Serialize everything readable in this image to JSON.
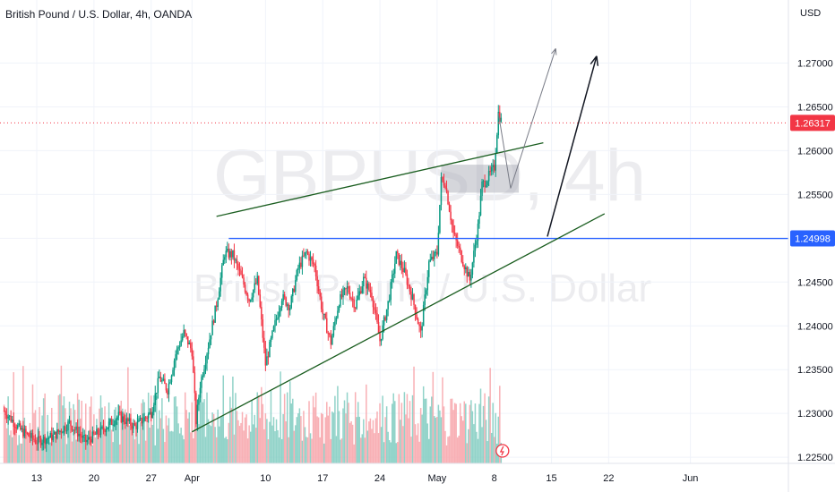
{
  "header": {
    "symbol_description": "British Pound / U.S. Dollar, 4h, OANDA",
    "currency": "USD"
  },
  "watermark": {
    "symbol": "GBPUSD, 4h",
    "description": "British Pound / U.S. Dollar"
  },
  "price_badges": {
    "last_price": "1.26317",
    "level": "1.24998",
    "last_color": "#f23645",
    "level_color": "#2962ff"
  },
  "chart_data": {
    "type": "candlestick",
    "y_axis": {
      "ylim": [
        1.2243,
        1.2772
      ],
      "ticks": [
        "1.27000",
        "1.26500",
        "1.26000",
        "1.25500",
        "1.25000",
        "1.24500",
        "1.24000",
        "1.23500",
        "1.23000",
        "1.22500"
      ],
      "tick_values": [
        1.27,
        1.265,
        1.26,
        1.255,
        1.25,
        1.245,
        1.24,
        1.235,
        1.23,
        1.225
      ]
    },
    "x_axis": {
      "tick_labels": [
        "13",
        "20",
        "27",
        "Apr",
        "10",
        "17",
        "24",
        "May",
        "8",
        "15",
        "22",
        "Jun"
      ],
      "tick_days": [
        -19,
        -12,
        -5,
        0,
        9,
        16,
        23,
        30,
        37,
        44,
        51,
        61
      ],
      "day_range": [
        -23.5,
        73
      ]
    },
    "grid": true,
    "colors": {
      "up": "#089981",
      "down": "#f23645",
      "volume_up": "#7fcbbf",
      "volume_down": "#f7a2a8"
    },
    "price_path": [
      [
        -23,
        1.2303
      ],
      [
        -21,
        1.2281
      ],
      [
        -19,
        1.2268
      ],
      [
        -17,
        1.2274
      ],
      [
        -15,
        1.2289
      ],
      [
        -13,
        1.2268
      ],
      [
        -11,
        1.2281
      ],
      [
        -9,
        1.2297
      ],
      [
        -7,
        1.2285
      ],
      [
        -5,
        1.2301
      ],
      [
        -4,
        1.2341
      ],
      [
        -3,
        1.2327
      ],
      [
        -2,
        1.2368
      ],
      [
        -1,
        1.2392
      ],
      [
        0,
        1.2371
      ],
      [
        0.5,
        1.2291
      ],
      [
        1,
        1.2333
      ],
      [
        2,
        1.2378
      ],
      [
        3,
        1.2425
      ],
      [
        4,
        1.2483
      ],
      [
        5,
        1.2481
      ],
      [
        6,
        1.2456
      ],
      [
        7,
        1.243
      ],
      [
        8,
        1.2452
      ],
      [
        9,
        1.2356
      ],
      [
        10,
        1.2396
      ],
      [
        11,
        1.2433
      ],
      [
        12,
        1.2422
      ],
      [
        13,
        1.2466
      ],
      [
        14,
        1.2484
      ],
      [
        15,
        1.2468
      ],
      [
        16,
        1.2414
      ],
      [
        17,
        1.2381
      ],
      [
        18,
        1.2428
      ],
      [
        19,
        1.2443
      ],
      [
        20,
        1.2423
      ],
      [
        21,
        1.2453
      ],
      [
        22,
        1.2436
      ],
      [
        23,
        1.2383
      ],
      [
        24,
        1.2426
      ],
      [
        25,
        1.2481
      ],
      [
        26,
        1.2461
      ],
      [
        27,
        1.2431
      ],
      [
        28,
        1.2391
      ],
      [
        29,
        1.2472
      ],
      [
        30,
        1.2483
      ],
      [
        30.5,
        1.2566
      ],
      [
        31,
        1.2563
      ],
      [
        32,
        1.2505
      ],
      [
        33,
        1.2478
      ],
      [
        34,
        1.2452
      ],
      [
        35,
        1.2513
      ],
      [
        35.5,
        1.2561
      ],
      [
        36,
        1.2566
      ],
      [
        37,
        1.2581
      ],
      [
        37.5,
        1.2643
      ],
      [
        38,
        1.263
      ]
    ],
    "volume_path": [
      3,
      4,
      3,
      5,
      4,
      6,
      5,
      7,
      5,
      4
    ],
    "zones": [
      {
        "name": "supply-demand-box",
        "day_from": 30.5,
        "day_to": 40.0,
        "y_from": 1.2552,
        "y_to": 1.2584
      }
    ],
    "levels": [
      {
        "name": "horizontal-level",
        "value": 1.24998,
        "day_from": 4.5,
        "day_to": 73
      }
    ],
    "trendlines": [
      {
        "name": "upper-wedge-line",
        "from": [
          3.0,
          1.2525
        ],
        "to": [
          43.0,
          1.2609
        ]
      },
      {
        "name": "lower-wedge-line",
        "from": [
          0.0,
          1.2279
        ],
        "to": [
          50.5,
          1.2528
        ]
      },
      {
        "name": "projection-arrow-major",
        "from": [
          43.5,
          1.2502
        ],
        "to": [
          49.5,
          1.2707
        ]
      },
      {
        "name": "projection-arrow-minor-up",
        "from": [
          39.0,
          1.2557
        ],
        "to": [
          44.5,
          1.2716
        ]
      },
      {
        "name": "projection-arrow-minor-down",
        "from": [
          37.5,
          1.2643
        ],
        "to": [
          39.0,
          1.2557
        ]
      }
    ]
  }
}
